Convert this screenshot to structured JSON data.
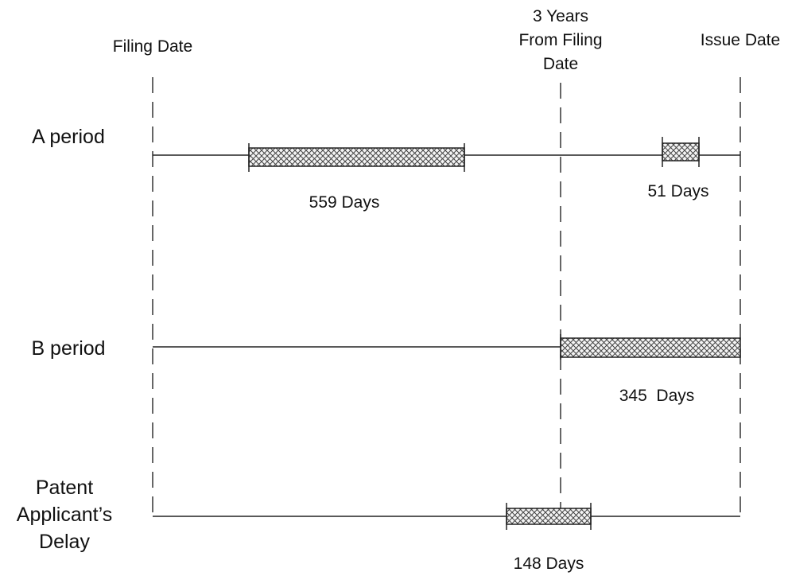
{
  "markers": {
    "filing_date": "Filing Date",
    "three_years": [
      "3 Years",
      "From Filing",
      "Date"
    ],
    "issue_date": "Issue Date"
  },
  "rows": {
    "a_period": {
      "label": [
        "A period"
      ]
    },
    "b_period": {
      "label": [
        "B period"
      ]
    },
    "applicant_delay": {
      "label": [
        "Patent",
        "Applicant’s",
        "Delay"
      ]
    }
  },
  "bars": {
    "a_first": {
      "label": "559 Days"
    },
    "a_second": {
      "label": "51 Days"
    },
    "b_first": {
      "label": "345  Days"
    },
    "delay_first": {
      "label": "148 Days"
    }
  }
}
